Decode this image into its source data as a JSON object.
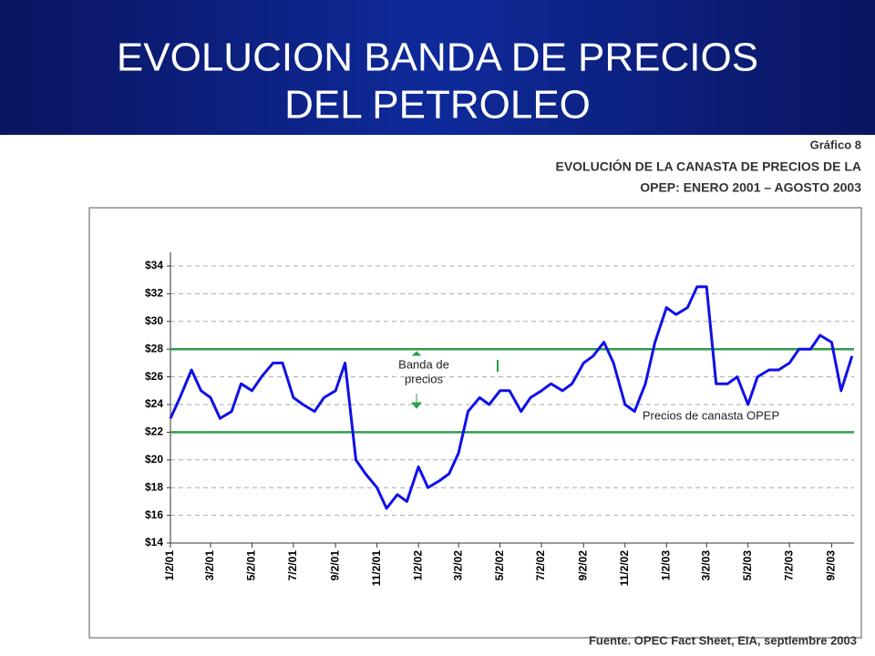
{
  "header": {
    "title": [
      "EVOLUCION BANDA DE PRECIOS",
      "DEL PETROLEO"
    ]
  },
  "caption": [
    "Gráfico 8",
    "EVOLUCIÓN DE LA CANASTA DE PRECIOS DE LA",
    "OPEP: ENERO 2001 – AGOSTO 2003"
  ],
  "source": "Fuente. OPEC Fact Sheet, EIA, septiembre 2003",
  "chart_data": {
    "type": "line",
    "x": [
      "1/2/01",
      "1/16/01",
      "2/2/01",
      "2/16/01",
      "3/2/01",
      "3/16/01",
      "4/2/01",
      "4/16/01",
      "5/2/01",
      "5/16/01",
      "6/2/01",
      "6/16/01",
      "7/2/01",
      "7/16/01",
      "8/2/01",
      "8/16/01",
      "9/2/01",
      "9/16/01",
      "10/2/01",
      "10/16/01",
      "11/2/01",
      "11/16/01",
      "12/2/01",
      "12/16/01",
      "1/2/02",
      "1/16/02",
      "2/2/02",
      "2/16/02",
      "3/2/02",
      "3/16/02",
      "4/2/02",
      "4/16/02",
      "5/2/02",
      "5/16/02",
      "6/2/02",
      "6/16/02",
      "7/2/02",
      "7/16/02",
      "8/2/02",
      "8/16/02",
      "9/2/02",
      "9/16/02",
      "10/2/02",
      "10/16/02",
      "11/2/02",
      "11/16/02",
      "12/2/02",
      "12/16/02",
      "1/2/03",
      "1/16/03",
      "2/2/03",
      "2/16/03",
      "3/2/03",
      "3/16/03",
      "4/2/03",
      "4/16/03",
      "5/2/03",
      "5/16/03",
      "6/2/03",
      "6/16/03",
      "7/2/03",
      "7/16/03",
      "8/2/03",
      "8/16/03",
      "9/2/03",
      "9/16/03",
      "10/2/03"
    ],
    "series": [
      {
        "name": "Precios de canasta OPEP",
        "color": "#1010e8",
        "values": [
          23,
          24.5,
          26.5,
          25,
          24.5,
          23,
          23.5,
          25.5,
          25,
          26,
          27,
          27,
          24.5,
          24,
          23.5,
          24.5,
          25,
          27,
          20,
          19,
          18,
          16.5,
          17.5,
          17,
          19.5,
          18,
          18.5,
          19,
          20.5,
          23.5,
          24.5,
          24,
          25,
          25,
          23.5,
          24.5,
          25,
          25.5,
          25,
          25.5,
          27,
          27.5,
          28.5,
          27,
          24,
          23.5,
          25.5,
          28.5,
          31,
          30.5,
          31,
          32.5,
          32.5,
          25.5,
          25.5,
          26,
          24,
          26,
          26.5,
          26.5,
          27,
          28,
          28,
          29,
          28.5,
          25,
          27.5
        ]
      }
    ],
    "band": {
      "name": "Banda de precios",
      "lines": [
        22,
        28
      ],
      "color": "#2e9e4a"
    },
    "band_label": [
      "Banda de",
      "precios"
    ],
    "xlim": [
      "1/2/01",
      "10/5/03"
    ],
    "xticks": [
      "1/2/01",
      "3/2/01",
      "5/2/01",
      "7/2/01",
      "9/2/01",
      "11/2/01",
      "1/2/02",
      "3/2/02",
      "5/2/02",
      "7/2/02",
      "9/2/02",
      "11/2/02",
      "1/2/03",
      "3/2/03",
      "5/2/03",
      "7/2/03",
      "9/2/03"
    ],
    "ylim": [
      14,
      34
    ],
    "yticks": [
      {
        "value": 14,
        "label": "$14"
      },
      {
        "value": 16,
        "label": "$16"
      },
      {
        "value": 18,
        "label": "$18"
      },
      {
        "value": 20,
        "label": "$20"
      },
      {
        "value": 22,
        "label": "$22"
      },
      {
        "value": 24,
        "label": "$24"
      },
      {
        "value": 26,
        "label": "$26"
      },
      {
        "value": 28,
        "label": "$28"
      },
      {
        "value": 30,
        "label": "$30"
      },
      {
        "value": 32,
        "label": "$32"
      },
      {
        "value": 34,
        "label": "$34"
      }
    ],
    "grid": true
  }
}
